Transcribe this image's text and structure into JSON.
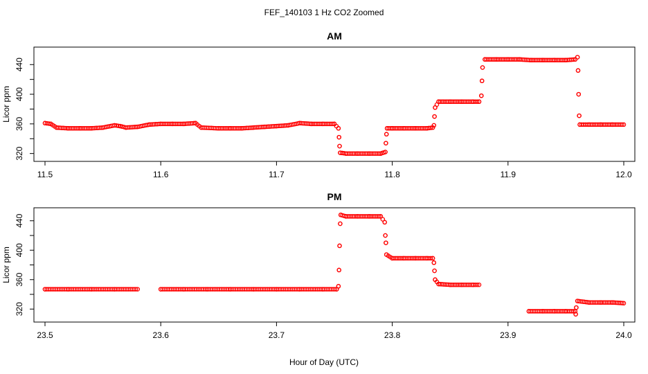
{
  "chart_data": {
    "title": "FEF_140103  1 Hz CO2 Zoomed",
    "xlabel": "Hour of Day (UTC)",
    "panels": [
      {
        "type": "scatter",
        "title": "AM",
        "ylabel": "Licor ppm",
        "xlim": [
          11.5,
          12.0
        ],
        "ylim": [
          315,
          458
        ],
        "xticks": [
          11.5,
          11.6,
          11.7,
          11.8,
          11.9,
          12.0
        ],
        "xtick_labels": [
          "11.5",
          "11.6",
          "11.7",
          "11.8",
          "11.9",
          "12.0"
        ],
        "yticks": [
          320,
          360,
          400,
          440
        ],
        "ytick_labels": [
          "320",
          "360",
          "400",
          "440"
        ],
        "color": "#ff0000",
        "marker": "open-circle",
        "x": [
          11.5,
          11.505,
          11.51,
          11.52,
          11.53,
          11.54,
          11.55,
          11.56,
          11.565,
          11.57,
          11.58,
          11.59,
          11.6,
          11.61,
          11.62,
          11.63,
          11.635,
          11.65,
          11.66,
          11.67,
          11.68,
          11.69,
          11.7,
          11.71,
          11.72,
          11.73,
          11.74,
          11.75,
          11.7535,
          11.754,
          11.7545,
          11.755,
          11.76,
          11.77,
          11.78,
          11.79,
          11.794,
          11.7945,
          11.795,
          11.7955,
          11.8,
          11.81,
          11.82,
          11.83,
          11.835,
          11.836,
          11.8365,
          11.837,
          11.84,
          11.85,
          11.86,
          11.87,
          11.875,
          11.877,
          11.8775,
          11.878,
          11.88,
          11.89,
          11.9,
          11.91,
          11.92,
          11.93,
          11.94,
          11.95,
          11.958,
          11.96,
          11.9605,
          11.961,
          11.9615,
          11.962,
          11.97,
          11.98,
          11.99,
          12.0
        ],
        "y": [
          361,
          360,
          355,
          354,
          354,
          354,
          355,
          358,
          357,
          355,
          356,
          359,
          360,
          360,
          360,
          361,
          355,
          354,
          354,
          354,
          355,
          356,
          357,
          358,
          361,
          360,
          360,
          360,
          354,
          342,
          330,
          321,
          320,
          320,
          320,
          320,
          322,
          334,
          346,
          354,
          354,
          354,
          354,
          354,
          355,
          358,
          370,
          382,
          390,
          390,
          390,
          390,
          390,
          398,
          418,
          436,
          447,
          447,
          447,
          447,
          446,
          446,
          446,
          446,
          447,
          450,
          432,
          400,
          371,
          359,
          359,
          359,
          359,
          359
        ]
      },
      {
        "type": "scatter",
        "title": "PM",
        "ylabel": "Licor ppm",
        "xlim": [
          23.5,
          24.0
        ],
        "ylim": [
          308,
          452
        ],
        "xticks": [
          23.5,
          23.6,
          23.7,
          23.8,
          23.9,
          24.0
        ],
        "xtick_labels": [
          "23.5",
          "23.6",
          "23.7",
          "23.8",
          "23.9",
          "24.0"
        ],
        "yticks": [
          320,
          360,
          400,
          440
        ],
        "ytick_labels": [
          "320",
          "360",
          "400",
          "440"
        ],
        "color": "#ff0000",
        "marker": "open-circle",
        "x": [
          23.5,
          23.52,
          23.54,
          23.56,
          23.58,
          23.6,
          23.62,
          23.64,
          23.66,
          23.68,
          23.7,
          23.72,
          23.74,
          23.752,
          23.7535,
          23.754,
          23.7545,
          23.755,
          23.7555,
          23.76,
          23.77,
          23.78,
          23.79,
          23.7935,
          23.794,
          23.7945,
          23.795,
          23.8,
          23.81,
          23.82,
          23.83,
          23.835,
          23.836,
          23.8365,
          23.837,
          23.84,
          23.85,
          23.86,
          23.87,
          23.875,
          23.918,
          23.93,
          23.94,
          23.95,
          23.958,
          23.9585,
          23.959,
          23.96,
          23.97,
          23.98,
          23.99,
          24.0
        ],
        "y": [
          347,
          347,
          347,
          347,
          347,
          347,
          347,
          347,
          347,
          347,
          347,
          347,
          347,
          347,
          351,
          373,
          406,
          436,
          448,
          446,
          446,
          446,
          446,
          438,
          420,
          410,
          394,
          389,
          389,
          389,
          389,
          389,
          383,
          372,
          360,
          354,
          353,
          353,
          353,
          353,
          317,
          317,
          317,
          317,
          317,
          313,
          322,
          331,
          329,
          329,
          329,
          328
        ]
      }
    ]
  }
}
